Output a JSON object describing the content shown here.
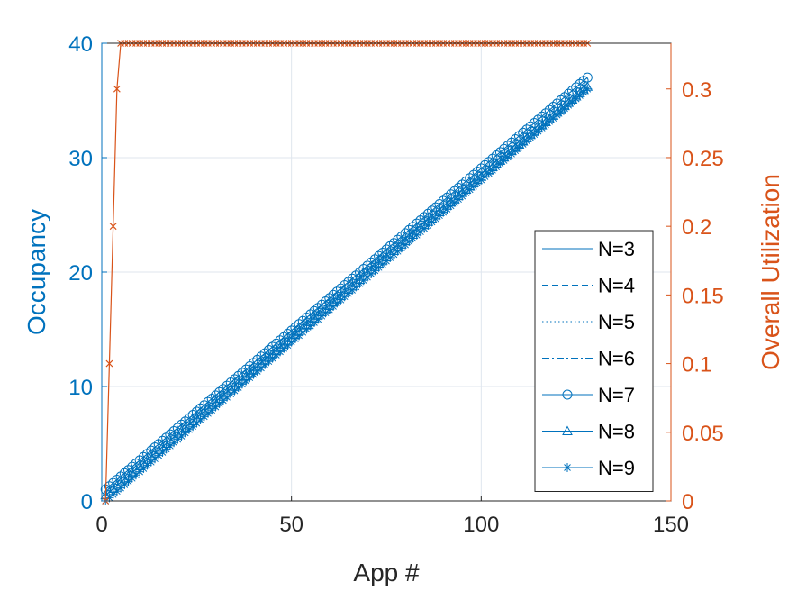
{
  "chart_data": {
    "type": "line",
    "title": "",
    "xlabel": "App #",
    "ylabel_left": "Occupancy",
    "ylabel_right": "Overall Utilization",
    "xlim": [
      0,
      150
    ],
    "ylim_left": [
      0,
      40
    ],
    "ylim_right": [
      0,
      0.3333
    ],
    "x_ticks": [
      0,
      50,
      100,
      150
    ],
    "y_left_ticks": [
      0,
      10,
      20,
      30,
      40
    ],
    "y_right_ticks": [
      0,
      0.05,
      0.1,
      0.15,
      0.2,
      0.25,
      0.3
    ],
    "x_tick_labels": [
      "0",
      "50",
      "100",
      "150"
    ],
    "y_left_tick_labels": [
      "0",
      "10",
      "20",
      "30",
      "40"
    ],
    "y_right_tick_labels": [
      "0",
      "0.05",
      "0.1",
      "0.15",
      "0.2",
      "0.25",
      "0.3"
    ],
    "grid": true,
    "legend_position": "right",
    "colors": {
      "left_axis": "#0072BD",
      "right_axis": "#D95319",
      "grid": "#DFE6EE",
      "axes_box": "#262626"
    },
    "occupancy_series": [
      {
        "name": "N=3",
        "line_style": "solid",
        "marker": "none",
        "x_range": [
          1,
          128
        ],
        "y_start": 1,
        "y_end": 37
      },
      {
        "name": "N=4",
        "line_style": "dashed",
        "marker": "none",
        "x_range": [
          1,
          128
        ],
        "y_start": 1,
        "y_end": 36.8
      },
      {
        "name": "N=5",
        "line_style": "dotted",
        "marker": "none",
        "x_range": [
          1,
          128
        ],
        "y_start": 1,
        "y_end": 36.7
      },
      {
        "name": "N=6",
        "line_style": "dashdot",
        "marker": "none",
        "x_range": [
          1,
          128
        ],
        "y_start": 0.8,
        "y_end": 36.5
      },
      {
        "name": "N=7",
        "line_style": "solid",
        "marker": "circle",
        "x_range": [
          1,
          128
        ],
        "y_start": 1,
        "y_end": 37
      },
      {
        "name": "N=8",
        "line_style": "solid",
        "marker": "triangle",
        "x_range": [
          1,
          128
        ],
        "y_start": 0.5,
        "y_end": 36.2
      },
      {
        "name": "N=9",
        "line_style": "solid",
        "marker": "asterisk",
        "x_range": [
          1,
          128
        ],
        "y_start": 0,
        "y_end": 36.0
      }
    ],
    "utilization_series": {
      "x": [
        1,
        2,
        3,
        4,
        5,
        6,
        7,
        8,
        9,
        10,
        11,
        12,
        13,
        14,
        15,
        16,
        17,
        18,
        19,
        20,
        21,
        22,
        23,
        24,
        25,
        26,
        27,
        28,
        29,
        30,
        31,
        32,
        33,
        34,
        35,
        36,
        37,
        38,
        39,
        40,
        41,
        42,
        43,
        44,
        45,
        46,
        47,
        48,
        49,
        50,
        51,
        52,
        53,
        54,
        55,
        56,
        57,
        58,
        59,
        60,
        61,
        62,
        63,
        64,
        65,
        66,
        67,
        68,
        69,
        70,
        71,
        72,
        73,
        74,
        75,
        76,
        77,
        78,
        79,
        80,
        81,
        82,
        83,
        84,
        85,
        86,
        87,
        88,
        89,
        90,
        91,
        92,
        93,
        94,
        95,
        96,
        97,
        98,
        99,
        100,
        101,
        102,
        103,
        104,
        105,
        106,
        107,
        108,
        109,
        110,
        111,
        112,
        113,
        114,
        115,
        116,
        117,
        118,
        119,
        120,
        121,
        122,
        123,
        124,
        125,
        126,
        127,
        128
      ],
      "y": [
        0,
        0.1,
        0.2,
        0.3,
        0.3333,
        0.3333,
        0.3333,
        0.3333,
        0.3333,
        0.3333,
        0.3333,
        0.3333,
        0.3333,
        0.3333,
        0.3333,
        0.3333,
        0.3333,
        0.3333,
        0.3333,
        0.3333,
        0.3333,
        0.3333,
        0.3333,
        0.3333,
        0.3333,
        0.3333,
        0.3333,
        0.3333,
        0.3333,
        0.3333,
        0.3333,
        0.3333,
        0.3333,
        0.3333,
        0.3333,
        0.3333,
        0.3333,
        0.3333,
        0.3333,
        0.3333,
        0.3333,
        0.3333,
        0.3333,
        0.3333,
        0.3333,
        0.3333,
        0.3333,
        0.3333,
        0.3333,
        0.3333,
        0.3333,
        0.3333,
        0.3333,
        0.3333,
        0.3333,
        0.3333,
        0.3333,
        0.3333,
        0.3333,
        0.3333,
        0.3333,
        0.3333,
        0.3333,
        0.3333,
        0.3333,
        0.3333,
        0.3333,
        0.3333,
        0.3333,
        0.3333,
        0.3333,
        0.3333,
        0.3333,
        0.3333,
        0.3333,
        0.3333,
        0.3333,
        0.3333,
        0.3333,
        0.3333,
        0.3333,
        0.3333,
        0.3333,
        0.3333,
        0.3333,
        0.3333,
        0.3333,
        0.3333,
        0.3333,
        0.3333,
        0.3333,
        0.3333,
        0.3333,
        0.3333,
        0.3333,
        0.3333,
        0.3333,
        0.3333,
        0.3333,
        0.3333,
        0.3333,
        0.3333,
        0.3333,
        0.3333,
        0.3333,
        0.3333,
        0.3333,
        0.3333,
        0.3333,
        0.3333,
        0.3333,
        0.3333,
        0.3333,
        0.3333,
        0.3333,
        0.3333,
        0.3333,
        0.3333,
        0.3333,
        0.3333,
        0.3333,
        0.3333,
        0.3333,
        0.3333,
        0.3333,
        0.3333,
        0.3333,
        0.3333
      ],
      "marker": "x"
    }
  }
}
